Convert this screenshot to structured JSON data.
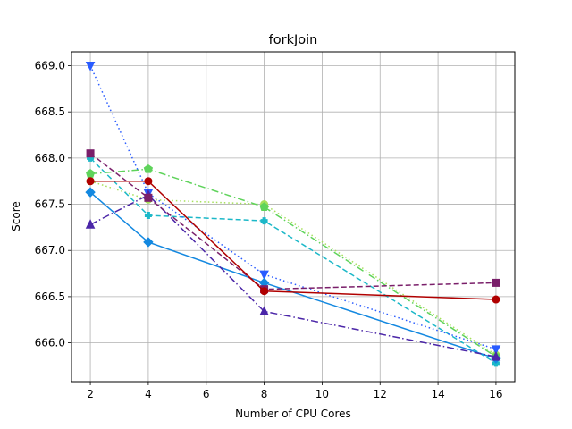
{
  "chart_data": {
    "type": "line",
    "title": "forkJoin",
    "xlabel": "Number of CPU Cores",
    "ylabel": "Score",
    "x": [
      2,
      4,
      8,
      16
    ],
    "xlim": [
      1.35,
      16.65
    ],
    "ylim": [
      665.58,
      669.15
    ],
    "xticks": [
      2,
      4,
      6,
      8,
      10,
      12,
      14,
      16
    ],
    "yticks": [
      666.0,
      666.5,
      667.0,
      667.5,
      668.0,
      668.5,
      669.0
    ],
    "grid": true,
    "series": [
      {
        "values": [
          667.75,
          667.55,
          667.5,
          665.87
        ],
        "color": "#a6e05a",
        "linestyle": "dotted",
        "marker": "circle"
      },
      {
        "values": [
          667.83,
          667.88,
          667.47,
          665.85
        ],
        "color": "#5fd35b",
        "linestyle": "dashdot",
        "marker": "pentagon"
      },
      {
        "values": [
          668.0,
          667.38,
          667.32,
          665.78
        ],
        "color": "#1cb8c8",
        "linestyle": "dashed",
        "marker": "plus"
      },
      {
        "values": [
          669.0,
          667.62,
          666.74,
          665.93
        ],
        "color": "#2a5cff",
        "linestyle": "dotted",
        "marker": "triangle-down"
      },
      {
        "values": [
          667.63,
          667.09,
          666.65,
          665.83
        ],
        "color": "#1388e0",
        "linestyle": "solid",
        "marker": "diamond"
      },
      {
        "values": [
          667.28,
          667.6,
          666.34,
          665.85
        ],
        "color": "#4b26a8",
        "linestyle": "dashdot",
        "marker": "triangle-up"
      },
      {
        "values": [
          668.05,
          667.57,
          666.58,
          666.65
        ],
        "color": "#7a1f6a",
        "linestyle": "dashed",
        "marker": "square"
      },
      {
        "values": [
          667.75,
          667.75,
          666.56,
          666.47
        ],
        "color": "#b00000",
        "linestyle": "solid",
        "marker": "circle"
      }
    ]
  }
}
